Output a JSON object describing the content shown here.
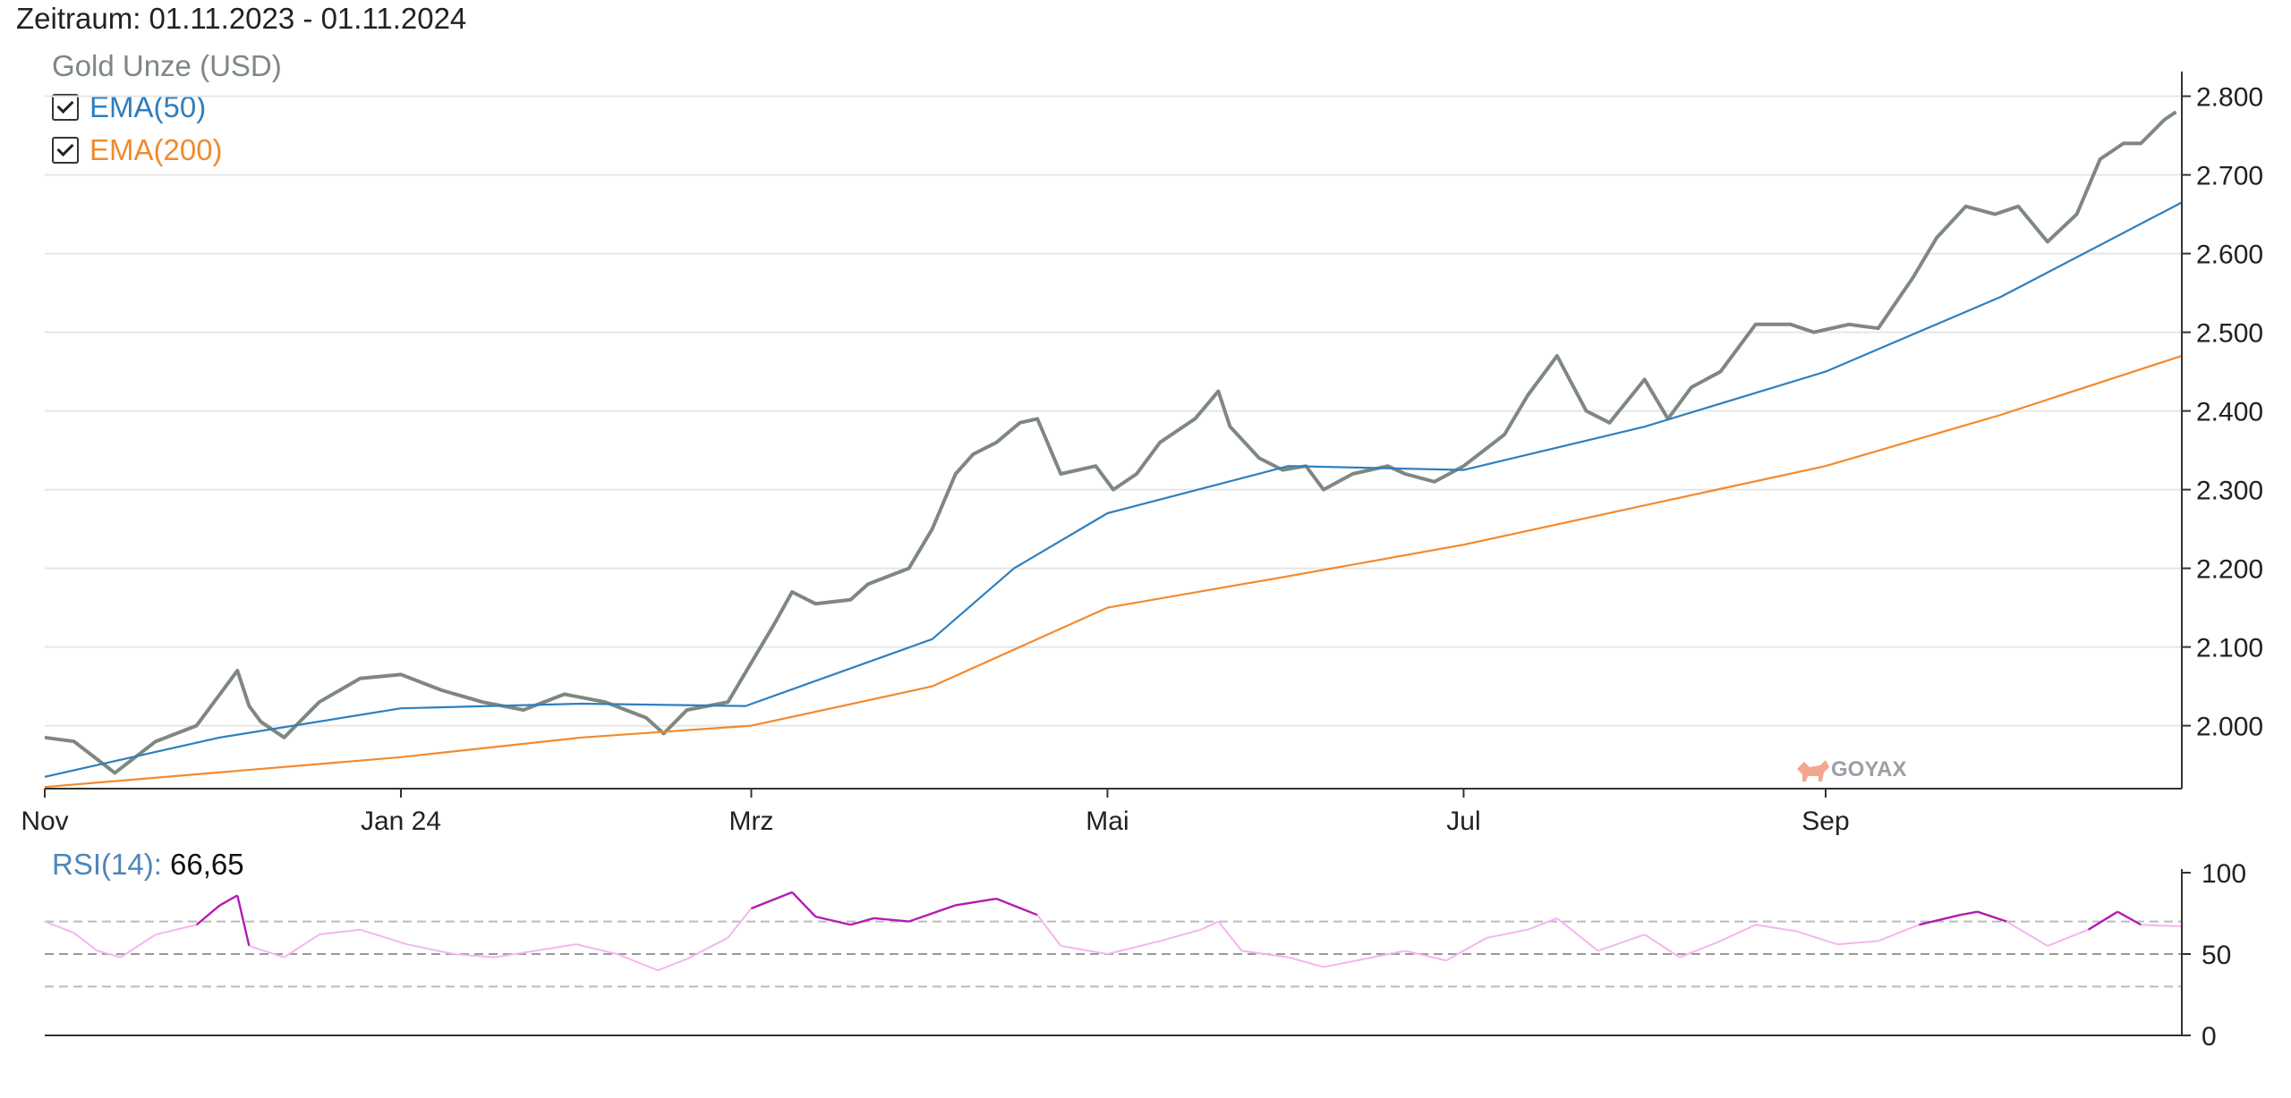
{
  "header": {
    "range_label": "Zeitraum: 01.11.2023 - 01.11.2024"
  },
  "legend": {
    "title": "Gold Unze (USD)",
    "items": [
      {
        "label": "EMA(50)",
        "color": "#2e7fbf",
        "checked": true
      },
      {
        "label": "EMA(200)",
        "color": "#f28a2e",
        "checked": true
      }
    ]
  },
  "watermark": "GOYAX",
  "rsi": {
    "name": "RSI(14):",
    "value": "66,65"
  },
  "colors": {
    "price": "#7e887f",
    "ema50": "#2e7fbf",
    "ema200": "#f28a2e",
    "rsi_high": "#b31bb3",
    "rsi_normal": "#f4b5ef",
    "grid": "#e6e6e6",
    "axis": "#333333",
    "band": "#bbbbbb"
  },
  "chart_data": [
    {
      "type": "line",
      "title": "Gold Unze (USD)",
      "x_tick_labels": [
        "Nov",
        "Jan 24",
        "Mrz",
        "Mai",
        "Jul",
        "Sep"
      ],
      "x_range": [
        "2023-11-01",
        "2024-11-01"
      ],
      "ylim": [
        1920,
        2820
      ],
      "y_tick_labels": [
        "2.000",
        "2.100",
        "2.200",
        "2.300",
        "2.400",
        "2.500",
        "2.600",
        "2.700",
        "2.800"
      ],
      "y_ticks": [
        2000,
        2100,
        2200,
        2300,
        2400,
        2500,
        2600,
        2700,
        2800
      ],
      "grid": true,
      "legend": "top-left",
      "series": [
        {
          "name": "Gold Unze (USD)",
          "points": [
            [
              "2023-11-01",
              1985
            ],
            [
              "2023-11-06",
              1980
            ],
            [
              "2023-11-13",
              1940
            ],
            [
              "2023-11-20",
              1980
            ],
            [
              "2023-11-27",
              2000
            ],
            [
              "2023-12-01",
              2040
            ],
            [
              "2023-12-04",
              2070
            ],
            [
              "2023-12-06",
              2025
            ],
            [
              "2023-12-08",
              2005
            ],
            [
              "2023-12-12",
              1985
            ],
            [
              "2023-12-18",
              2030
            ],
            [
              "2023-12-25",
              2060
            ],
            [
              "2024-01-01",
              2065
            ],
            [
              "2024-01-08",
              2045
            ],
            [
              "2024-01-15",
              2030
            ],
            [
              "2024-01-22",
              2020
            ],
            [
              "2024-01-29",
              2040
            ],
            [
              "2024-02-05",
              2030
            ],
            [
              "2024-02-12",
              2010
            ],
            [
              "2024-02-15",
              1990
            ],
            [
              "2024-02-19",
              2020
            ],
            [
              "2024-02-26",
              2030
            ],
            [
              "2024-03-01",
              2080
            ],
            [
              "2024-03-05",
              2130
            ],
            [
              "2024-03-08",
              2170
            ],
            [
              "2024-03-12",
              2155
            ],
            [
              "2024-03-18",
              2160
            ],
            [
              "2024-03-21",
              2180
            ],
            [
              "2024-03-28",
              2200
            ],
            [
              "2024-04-01",
              2250
            ],
            [
              "2024-04-05",
              2320
            ],
            [
              "2024-04-08",
              2345
            ],
            [
              "2024-04-12",
              2360
            ],
            [
              "2024-04-16",
              2385
            ],
            [
              "2024-04-19",
              2390
            ],
            [
              "2024-04-23",
              2320
            ],
            [
              "2024-04-29",
              2330
            ],
            [
              "2024-05-02",
              2300
            ],
            [
              "2024-05-06",
              2320
            ],
            [
              "2024-05-10",
              2360
            ],
            [
              "2024-05-16",
              2390
            ],
            [
              "2024-05-20",
              2425
            ],
            [
              "2024-05-22",
              2380
            ],
            [
              "2024-05-27",
              2340
            ],
            [
              "2024-05-31",
              2325
            ],
            [
              "2024-06-04",
              2330
            ],
            [
              "2024-06-07",
              2300
            ],
            [
              "2024-06-12",
              2320
            ],
            [
              "2024-06-18",
              2330
            ],
            [
              "2024-06-21",
              2320
            ],
            [
              "2024-06-26",
              2310
            ],
            [
              "2024-07-01",
              2330
            ],
            [
              "2024-07-08",
              2370
            ],
            [
              "2024-07-12",
              2420
            ],
            [
              "2024-07-17",
              2470
            ],
            [
              "2024-07-22",
              2400
            ],
            [
              "2024-07-26",
              2385
            ],
            [
              "2024-08-01",
              2440
            ],
            [
              "2024-08-05",
              2390
            ],
            [
              "2024-08-09",
              2430
            ],
            [
              "2024-08-14",
              2450
            ],
            [
              "2024-08-20",
              2510
            ],
            [
              "2024-08-26",
              2510
            ],
            [
              "2024-08-30",
              2500
            ],
            [
              "2024-09-05",
              2510
            ],
            [
              "2024-09-10",
              2505
            ],
            [
              "2024-09-16",
              2570
            ],
            [
              "2024-09-20",
              2620
            ],
            [
              "2024-09-25",
              2660
            ],
            [
              "2024-09-30",
              2650
            ],
            [
              "2024-10-04",
              2660
            ],
            [
              "2024-10-09",
              2615
            ],
            [
              "2024-10-14",
              2650
            ],
            [
              "2024-10-18",
              2720
            ],
            [
              "2024-10-22",
              2740
            ],
            [
              "2024-10-25",
              2740
            ],
            [
              "2024-10-29",
              2770
            ],
            [
              "2024-10-31",
              2780
            ]
          ]
        },
        {
          "name": "EMA(50)",
          "points": [
            [
              "2023-11-01",
              1935
            ],
            [
              "2023-12-01",
              1985
            ],
            [
              "2024-01-01",
              2022
            ],
            [
              "2024-02-01",
              2028
            ],
            [
              "2024-02-29",
              2025
            ],
            [
              "2024-04-01",
              2110
            ],
            [
              "2024-04-15",
              2200
            ],
            [
              "2024-05-01",
              2270
            ],
            [
              "2024-06-01",
              2330
            ],
            [
              "2024-07-01",
              2325
            ],
            [
              "2024-08-01",
              2380
            ],
            [
              "2024-09-01",
              2450
            ],
            [
              "2024-10-01",
              2545
            ],
            [
              "2024-11-01",
              2665
            ]
          ]
        },
        {
          "name": "EMA(200)",
          "points": [
            [
              "2023-11-01",
              1922
            ],
            [
              "2024-01-01",
              1960
            ],
            [
              "2024-02-01",
              1985
            ],
            [
              "2024-03-01",
              2000
            ],
            [
              "2024-04-01",
              2050
            ],
            [
              "2024-05-01",
              2150
            ],
            [
              "2024-06-01",
              2190
            ],
            [
              "2024-07-01",
              2230
            ],
            [
              "2024-08-01",
              2280
            ],
            [
              "2024-09-01",
              2330
            ],
            [
              "2024-10-01",
              2395
            ],
            [
              "2024-11-01",
              2470
            ]
          ]
        }
      ]
    },
    {
      "type": "line",
      "title": "RSI(14)",
      "ylim": [
        0,
        100
      ],
      "y_tick_labels": [
        "0",
        "50",
        "100"
      ],
      "y_ticks": [
        0,
        50,
        100
      ],
      "bands": [
        30,
        50,
        70
      ],
      "series": [
        {
          "name": "RSI(14)",
          "points": [
            [
              "2023-11-01",
              70
            ],
            [
              "2023-11-06",
              63
            ],
            [
              "2023-11-10",
              52
            ],
            [
              "2023-11-14",
              48
            ],
            [
              "2023-11-20",
              62
            ],
            [
              "2023-11-27",
              68
            ],
            [
              "2023-12-01",
              80
            ],
            [
              "2023-12-04",
              86
            ],
            [
              "2023-12-06",
              55
            ],
            [
              "2023-12-12",
              48
            ],
            [
              "2023-12-18",
              62
            ],
            [
              "2023-12-25",
              65
            ],
            [
              "2024-01-02",
              56
            ],
            [
              "2024-01-10",
              50
            ],
            [
              "2024-01-17",
              48
            ],
            [
              "2024-01-24",
              52
            ],
            [
              "2024-01-31",
              56
            ],
            [
              "2024-02-07",
              50
            ],
            [
              "2024-02-14",
              40
            ],
            [
              "2024-02-19",
              47
            ],
            [
              "2024-02-26",
              60
            ],
            [
              "2024-03-01",
              78
            ],
            [
              "2024-03-08",
              88
            ],
            [
              "2024-03-12",
              73
            ],
            [
              "2024-03-18",
              68
            ],
            [
              "2024-03-22",
              72
            ],
            [
              "2024-03-28",
              70
            ],
            [
              "2024-04-05",
              80
            ],
            [
              "2024-04-12",
              84
            ],
            [
              "2024-04-19",
              74
            ],
            [
              "2024-04-23",
              55
            ],
            [
              "2024-05-01",
              50
            ],
            [
              "2024-05-10",
              58
            ],
            [
              "2024-05-17",
              65
            ],
            [
              "2024-05-20",
              70
            ],
            [
              "2024-05-24",
              52
            ],
            [
              "2024-06-01",
              48
            ],
            [
              "2024-06-07",
              42
            ],
            [
              "2024-06-14",
              47
            ],
            [
              "2024-06-21",
              52
            ],
            [
              "2024-06-28",
              46
            ],
            [
              "2024-07-05",
              60
            ],
            [
              "2024-07-12",
              65
            ],
            [
              "2024-07-17",
              72
            ],
            [
              "2024-07-24",
              52
            ],
            [
              "2024-08-01",
              62
            ],
            [
              "2024-08-07",
              48
            ],
            [
              "2024-08-14",
              58
            ],
            [
              "2024-08-20",
              68
            ],
            [
              "2024-08-27",
              64
            ],
            [
              "2024-09-03",
              56
            ],
            [
              "2024-09-10",
              58
            ],
            [
              "2024-09-17",
              68
            ],
            [
              "2024-09-24",
              74
            ],
            [
              "2024-09-27",
              76
            ],
            [
              "2024-10-02",
              70
            ],
            [
              "2024-10-09",
              55
            ],
            [
              "2024-10-16",
              65
            ],
            [
              "2024-10-21",
              76
            ],
            [
              "2024-10-25",
              68
            ],
            [
              "2024-11-01",
              67
            ]
          ]
        }
      ]
    }
  ]
}
